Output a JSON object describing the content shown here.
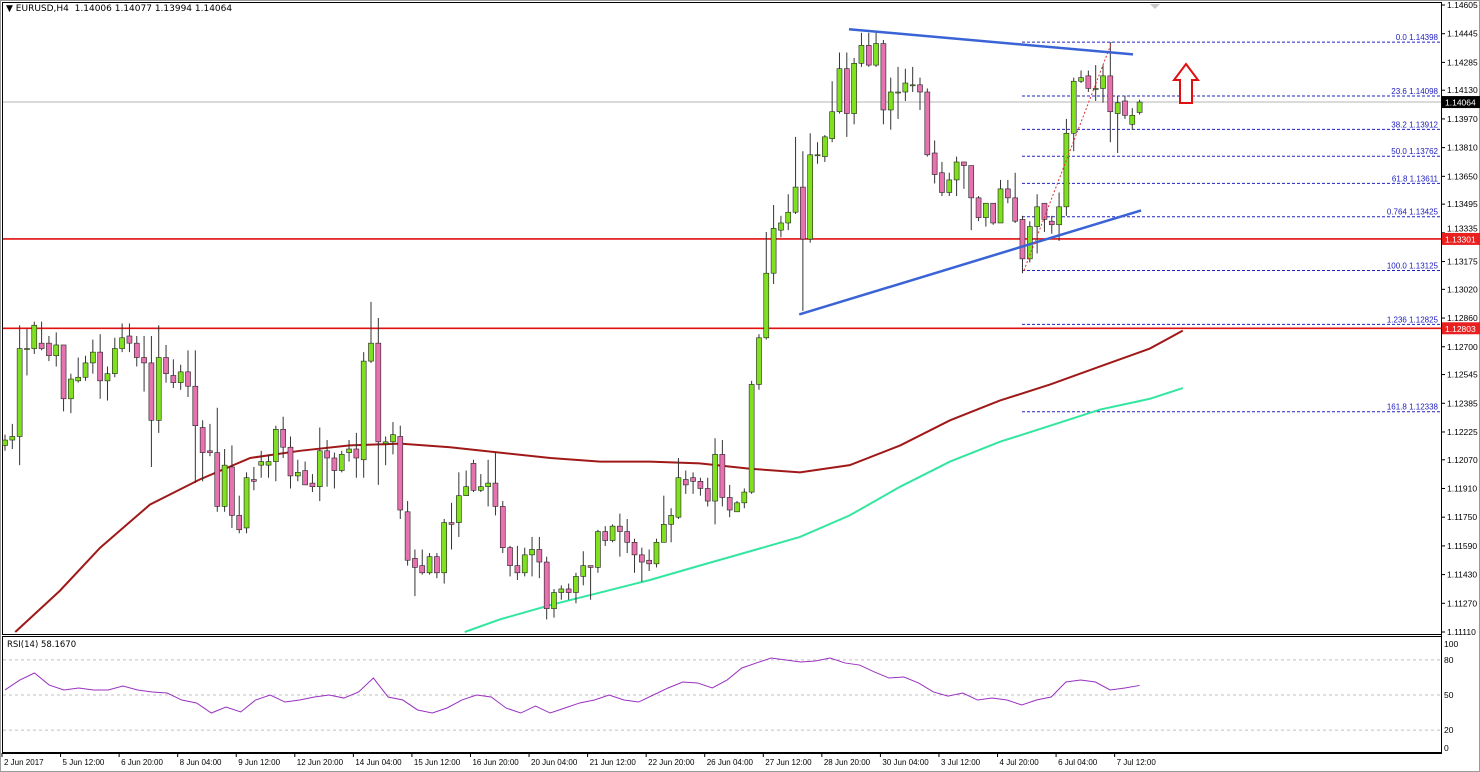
{
  "header": {
    "dropdown_icon": "triangle-down-icon",
    "symbol": "EURUSD,H4",
    "ohlc": "1.14006 1.14077 1.13994 1.14064"
  },
  "indicator": {
    "label": "RSI(14) 58.1670"
  },
  "colors": {
    "bull": "#80e020",
    "bear": "#e672b0",
    "ma_slow": "#a01818",
    "ma_fast": "#33e6a0",
    "trendline": "#3a63d6",
    "sr_line": "#e01010",
    "fib": "#2020c0",
    "rsi": "#9a30c0",
    "arrow": "#e01010"
  },
  "chart_data": {
    "type": "candlestick",
    "symbol": "EURUSD",
    "timeframe": "H4",
    "ylim": [
      1.1111,
      1.14605
    ],
    "price_ticks": [
      "1.14605",
      "1.14445",
      "1.14285",
      "1.14130",
      "1.13970",
      "1.13810",
      "1.13650",
      "1.13495",
      "1.13335",
      "1.13175",
      "1.13020",
      "1.12860",
      "1.12700",
      "1.12545",
      "1.12385",
      "1.12225",
      "1.12070",
      "1.11910",
      "1.11750",
      "1.11590",
      "1.11430",
      "1.11270",
      "1.11110"
    ],
    "time_ticks": [
      "2 Jun 2017",
      "5 Jun 12:00",
      "6 Jun 20:00",
      "8 Jun 04:00",
      "9 Jun 12:00",
      "12 Jun 20:00",
      "14 Jun 04:00",
      "15 Jun 12:00",
      "16 Jun 20:00",
      "20 Jun 04:00",
      "21 Jun 12:00",
      "22 Jun 20:00",
      "26 Jun 04:00",
      "27 Jun 12:00",
      "28 Jun 20:00",
      "30 Jun 04:00",
      "3 Jul 12:00",
      "4 Jul 20:00",
      "6 Jul 04:00",
      "7 Jul 12:00"
    ],
    "ohlc": [
      [
        1.1215,
        1.1221,
        1.1212,
        1.1218
      ],
      [
        1.1218,
        1.1227,
        1.1213,
        1.122
      ],
      [
        1.122,
        1.1282,
        1.1204,
        1.1269
      ],
      [
        1.1269,
        1.128,
        1.1254,
        1.1269
      ],
      [
        1.1269,
        1.1284,
        1.1266,
        1.1282
      ],
      [
        1.1272,
        1.1284,
        1.1268,
        1.1269
      ],
      [
        1.1272,
        1.1276,
        1.1262,
        1.1265
      ],
      [
        1.1265,
        1.1278,
        1.1259,
        1.1271
      ],
      [
        1.1271,
        1.1271,
        1.1234,
        1.1241
      ],
      [
        1.1241,
        1.1255,
        1.1233,
        1.1252
      ],
      [
        1.1251,
        1.1264,
        1.125,
        1.1253
      ],
      [
        1.1253,
        1.1265,
        1.1251,
        1.1261
      ],
      [
        1.1261,
        1.1274,
        1.1255,
        1.1267
      ],
      [
        1.1267,
        1.1277,
        1.1241,
        1.1251
      ],
      [
        1.1251,
        1.1259,
        1.124,
        1.1255
      ],
      [
        1.1255,
        1.1275,
        1.1253,
        1.1269
      ],
      [
        1.1269,
        1.1283,
        1.1267,
        1.1275
      ],
      [
        1.1276,
        1.1283,
        1.1267,
        1.1272
      ],
      [
        1.1272,
        1.1276,
        1.1259,
        1.1264
      ],
      [
        1.1264,
        1.1276,
        1.1245,
        1.1261
      ],
      [
        1.1261,
        1.1276,
        1.1203,
        1.1229
      ],
      [
        1.1229,
        1.1282,
        1.1222,
        1.1264
      ],
      [
        1.1264,
        1.1271,
        1.125,
        1.1255
      ],
      [
        1.1254,
        1.1263,
        1.1247,
        1.125
      ],
      [
        1.125,
        1.126,
        1.1246,
        1.1256
      ],
      [
        1.1256,
        1.1268,
        1.1242,
        1.1248
      ],
      [
        1.1248,
        1.1268,
        1.1194,
        1.1226
      ],
      [
        1.1225,
        1.1229,
        1.1195,
        1.1211
      ],
      [
        1.1212,
        1.1227,
        1.1209,
        1.1211
      ],
      [
        1.1211,
        1.1236,
        1.1178,
        1.1181
      ],
      [
        1.1181,
        1.1213,
        1.1178,
        1.1204
      ],
      [
        1.1203,
        1.1215,
        1.1169,
        1.1176
      ],
      [
        1.1176,
        1.1187,
        1.1166,
        1.1168
      ],
      [
        1.1169,
        1.12,
        1.1166,
        1.1197
      ],
      [
        1.1196,
        1.1203,
        1.119,
        1.1195
      ],
      [
        1.1204,
        1.1212,
        1.1197,
        1.1206
      ],
      [
        1.1204,
        1.121,
        1.1197,
        1.1206
      ],
      [
        1.1206,
        1.1226,
        1.1195,
        1.1224
      ],
      [
        1.1224,
        1.1231,
        1.1208,
        1.1214
      ],
      [
        1.1214,
        1.122,
        1.1191,
        1.1198
      ],
      [
        1.1198,
        1.1207,
        1.1195,
        1.12
      ],
      [
        1.1201,
        1.1206,
        1.1193,
        1.1193
      ],
      [
        1.1194,
        1.1199,
        1.1189,
        1.1192
      ],
      [
        1.1192,
        1.1225,
        1.1184,
        1.1212
      ],
      [
        1.1212,
        1.1218,
        1.1192,
        1.1208
      ],
      [
        1.1208,
        1.1211,
        1.1191,
        1.1201
      ],
      [
        1.1201,
        1.1212,
        1.12,
        1.121
      ],
      [
        1.1211,
        1.1218,
        1.1206,
        1.1213
      ],
      [
        1.1213,
        1.1222,
        1.1197,
        1.1208
      ],
      [
        1.1207,
        1.1267,
        1.1197,
        1.1262
      ],
      [
        1.1262,
        1.1295,
        1.1261,
        1.1272
      ],
      [
        1.1272,
        1.1286,
        1.1193,
        1.1217
      ],
      [
        1.1216,
        1.122,
        1.1204,
        1.1217
      ],
      [
        1.1217,
        1.1228,
        1.121,
        1.1221
      ],
      [
        1.122,
        1.1226,
        1.1174,
        1.1179
      ],
      [
        1.1178,
        1.1184,
        1.1148,
        1.1151
      ],
      [
        1.1152,
        1.1157,
        1.1131,
        1.1147
      ],
      [
        1.1148,
        1.1157,
        1.1143,
        1.1144
      ],
      [
        1.1144,
        1.1155,
        1.1143,
        1.1153
      ],
      [
        1.1153,
        1.1155,
        1.1141,
        1.1144
      ],
      [
        1.1144,
        1.1174,
        1.1138,
        1.1172
      ],
      [
        1.1172,
        1.1183,
        1.1157,
        1.1171
      ],
      [
        1.1172,
        1.12,
        1.1164,
        1.1187
      ],
      [
        1.1187,
        1.1201,
        1.1187,
        1.1192
      ],
      [
        1.1205,
        1.1207,
        1.1189,
        1.119
      ],
      [
        1.119,
        1.1199,
        1.1189,
        1.1192
      ],
      [
        1.1192,
        1.1207,
        1.1181,
        1.1194
      ],
      [
        1.1194,
        1.1211,
        1.1176,
        1.1181
      ],
      [
        1.1181,
        1.1184,
        1.1155,
        1.1158
      ],
      [
        1.1158,
        1.1159,
        1.1142,
        1.1148
      ],
      [
        1.1148,
        1.1159,
        1.114,
        1.1144
      ],
      [
        1.1144,
        1.1158,
        1.1142,
        1.1154
      ],
      [
        1.1154,
        1.1164,
        1.1142,
        1.1157
      ],
      [
        1.1157,
        1.1164,
        1.1141,
        1.115
      ],
      [
        1.115,
        1.1153,
        1.1118,
        1.1124
      ],
      [
        1.1124,
        1.1135,
        1.1119,
        1.1133
      ],
      [
        1.1133,
        1.1137,
        1.1129,
        1.1135
      ],
      [
        1.1135,
        1.1138,
        1.1129,
        1.1133
      ],
      [
        1.1133,
        1.1144,
        1.1127,
        1.1142
      ],
      [
        1.1142,
        1.1156,
        1.1137,
        1.1148
      ],
      [
        1.1148,
        1.1148,
        1.1129,
        1.1147
      ],
      [
        1.1147,
        1.1168,
        1.1144,
        1.1167
      ],
      [
        1.1167,
        1.117,
        1.1159,
        1.1162
      ],
      [
        1.1162,
        1.1171,
        1.1161,
        1.117
      ],
      [
        1.117,
        1.1177,
        1.1153,
        1.1167
      ],
      [
        1.1167,
        1.1174,
        1.1155,
        1.1161
      ],
      [
        1.1161,
        1.1163,
        1.1144,
        1.1154
      ],
      [
        1.1154,
        1.1158,
        1.1139,
        1.115
      ],
      [
        1.1151,
        1.1157,
        1.1145,
        1.1149
      ],
      [
        1.1149,
        1.1163,
        1.1147,
        1.1161
      ],
      [
        1.1161,
        1.1187,
        1.1161,
        1.1171
      ],
      [
        1.1171,
        1.118,
        1.1161,
        1.1176
      ],
      [
        1.1175,
        1.1208,
        1.1174,
        1.1197
      ],
      [
        1.1196,
        1.1201,
        1.1188,
        1.1193
      ],
      [
        1.1197,
        1.12,
        1.1188,
        1.1195
      ],
      [
        1.1195,
        1.1197,
        1.1187,
        1.1191
      ],
      [
        1.1191,
        1.1197,
        1.1181,
        1.1184
      ],
      [
        1.1184,
        1.1219,
        1.1171,
        1.121
      ],
      [
        1.121,
        1.1218,
        1.1181,
        1.1186
      ],
      [
        1.1186,
        1.1193,
        1.1175,
        1.1179
      ],
      [
        1.1178,
        1.1184,
        1.1178,
        1.1183
      ],
      [
        1.1183,
        1.1191,
        1.118,
        1.1189
      ],
      [
        1.1189,
        1.1251,
        1.1188,
        1.1249
      ],
      [
        1.1249,
        1.1277,
        1.1246,
        1.1275
      ],
      [
        1.1275,
        1.1334,
        1.1274,
        1.1311
      ],
      [
        1.1311,
        1.1349,
        1.1305,
        1.1336
      ],
      [
        1.1335,
        1.1343,
        1.1331,
        1.1339
      ],
      [
        1.1339,
        1.1355,
        1.1335,
        1.1345
      ],
      [
        1.1345,
        1.1387,
        1.1344,
        1.1359
      ],
      [
        1.1359,
        1.1379,
        1.129,
        1.133
      ],
      [
        1.133,
        1.1389,
        1.1328,
        1.1377
      ],
      [
        1.1377,
        1.1384,
        1.1372,
        1.1377
      ],
      [
        1.1376,
        1.1388,
        1.1373,
        1.1387
      ],
      [
        1.1386,
        1.1418,
        1.1384,
        1.1401
      ],
      [
        1.1401,
        1.1434,
        1.14,
        1.1425
      ],
      [
        1.1425,
        1.1434,
        1.1387,
        1.14
      ],
      [
        1.14,
        1.1431,
        1.1394,
        1.1428
      ],
      [
        1.1428,
        1.1445,
        1.1426,
        1.1438
      ],
      [
        1.1438,
        1.1445,
        1.1426,
        1.1427
      ],
      [
        1.1427,
        1.1445,
        1.1426,
        1.1439
      ],
      [
        1.1439,
        1.1441,
        1.1394,
        1.1402
      ],
      [
        1.1402,
        1.142,
        1.1391,
        1.1412
      ],
      [
        1.1412,
        1.1426,
        1.1397,
        1.1412
      ],
      [
        1.1412,
        1.1425,
        1.1407,
        1.1417
      ],
      [
        1.1416,
        1.1426,
        1.1412,
        1.1416
      ],
      [
        1.1416,
        1.142,
        1.1402,
        1.1412
      ],
      [
        1.1412,
        1.1414,
        1.1376,
        1.1377
      ],
      [
        1.1378,
        1.1385,
        1.1361,
        1.1366
      ],
      [
        1.1367,
        1.1373,
        1.1354,
        1.1356
      ],
      [
        1.1356,
        1.1367,
        1.1354,
        1.1363
      ],
      [
        1.1363,
        1.1376,
        1.1354,
        1.1373
      ],
      [
        1.1373,
        1.1373,
        1.1358,
        1.1371
      ],
      [
        1.1371,
        1.1371,
        1.1335,
        1.1353
      ],
      [
        1.1353,
        1.1354,
        1.134,
        1.1342
      ],
      [
        1.1342,
        1.135,
        1.1337,
        1.135
      ],
      [
        1.135,
        1.135,
        1.1338,
        1.1339
      ],
      [
        1.1339,
        1.1363,
        1.1339,
        1.1358
      ],
      [
        1.1358,
        1.1363,
        1.135,
        1.1353
      ],
      [
        1.1353,
        1.1367,
        1.1339,
        1.134
      ],
      [
        1.1341,
        1.1343,
        1.1311,
        1.1319
      ],
      [
        1.1319,
        1.134,
        1.1317,
        1.1337
      ],
      [
        1.1337,
        1.1355,
        1.1322,
        1.1348
      ],
      [
        1.135,
        1.135,
        1.1334,
        1.1341
      ],
      [
        1.134,
        1.1343,
        1.1333,
        1.1338
      ],
      [
        1.1338,
        1.1356,
        1.1329,
        1.1348
      ],
      [
        1.1348,
        1.1397,
        1.1343,
        1.1389
      ],
      [
        1.1389,
        1.142,
        1.1379,
        1.1418
      ],
      [
        1.1418,
        1.1424,
        1.1417,
        1.142
      ],
      [
        1.1421,
        1.1424,
        1.1412,
        1.1414
      ],
      [
        1.1414,
        1.1427,
        1.1407,
        1.1414
      ],
      [
        1.1414,
        1.1427,
        1.1406,
        1.1421
      ],
      [
        1.1421,
        1.14398,
        1.1384,
        1.1401
      ],
      [
        1.14,
        1.141,
        1.1378,
        1.1406
      ],
      [
        1.1407,
        1.141,
        1.1397,
        1.1399
      ],
      [
        1.1394,
        1.1403,
        1.1391,
        1.1399
      ],
      [
        1.14006,
        1.14077,
        1.13994,
        1.14064
      ]
    ],
    "ma_slow": [
      [
        1.4,
        1.1111
      ],
      [
        7.5,
        1.1134
      ],
      [
        13,
        1.1158
      ],
      [
        19.8,
        1.1182
      ],
      [
        26.6,
        1.1196
      ],
      [
        33.5,
        1.1208
      ],
      [
        40.3,
        1.1212
      ],
      [
        47.1,
        1.1215
      ],
      [
        54,
        1.1216
      ],
      [
        60.8,
        1.1214
      ],
      [
        67.6,
        1.1211
      ],
      [
        74.5,
        1.1208
      ],
      [
        81.3,
        1.1206
      ],
      [
        88.1,
        1.1206
      ],
      [
        94.9,
        1.1205
      ],
      [
        101.8,
        1.1202
      ],
      [
        108.6,
        1.12
      ],
      [
        115.4,
        1.1204
      ],
      [
        122.3,
        1.1215
      ],
      [
        129.1,
        1.1229
      ],
      [
        135.9,
        1.124
      ],
      [
        142.8,
        1.1249
      ],
      [
        149.6,
        1.1259
      ],
      [
        156.4,
        1.1269
      ],
      [
        160.9,
        1.1279
      ]
    ],
    "ma_fast": [
      [
        62.8,
        1.1111
      ],
      [
        67.6,
        1.1118
      ],
      [
        74.5,
        1.1126
      ],
      [
        81.3,
        1.1133
      ],
      [
        88.1,
        1.114
      ],
      [
        94.9,
        1.1148
      ],
      [
        101.8,
        1.1156
      ],
      [
        108.6,
        1.1164
      ],
      [
        115.4,
        1.1176
      ],
      [
        122.3,
        1.1192
      ],
      [
        129.1,
        1.1206
      ],
      [
        135.9,
        1.1217
      ],
      [
        142.8,
        1.1226
      ],
      [
        149.6,
        1.1235
      ],
      [
        156.4,
        1.1241
      ],
      [
        160.9,
        1.1247
      ]
    ],
    "trendlines": [
      [
        [
          115.3,
          1.1447
        ],
        [
          154.1,
          1.1433
        ]
      ],
      [
        [
          108.5,
          1.1288
        ],
        [
          155.2,
          1.1346
        ]
      ]
    ],
    "horizontal_levels": [
      {
        "price": 1.13301,
        "label": "1.13301"
      },
      {
        "price": 1.12803,
        "label": "1.12803"
      }
    ],
    "current_price": {
      "price": 1.14064,
      "label": "1.14064"
    },
    "fib_anchor": [
      [
        139.2,
        1.13125
      ],
      [
        151.2,
        1.14398
      ]
    ],
    "fib_levels": [
      {
        "label": "0.0 1.14398",
        "price": 1.14398
      },
      {
        "label": "23.6 1.14098",
        "price": 1.14098
      },
      {
        "label": "38.2 1.13912",
        "price": 1.13912
      },
      {
        "label": "50.0 1.13762",
        "price": 1.13762
      },
      {
        "label": "61.8 1.13611",
        "price": 1.13611
      },
      {
        "label": "0.764 1.13425",
        "price": 1.13425
      },
      {
        "label": "100.0 1.13125",
        "price": 1.13125
      },
      {
        "label": "1.236 1.12825",
        "price": 1.12825
      },
      {
        "label": "161.8 1.12338",
        "price": 1.12338
      }
    ],
    "arrow": {
      "direction": "up",
      "icon": "up-arrow-outline-icon"
    },
    "rsi": {
      "period": 14,
      "ylim": [
        0,
        100
      ],
      "ticks": [
        "100",
        "80",
        "50",
        "20",
        "0"
      ],
      "levels": [
        80,
        50,
        20
      ],
      "values": [
        54.3,
        62.8,
        68.8,
        58.5,
        54.3,
        56,
        54.3,
        54.3,
        57.7,
        54.3,
        52.6,
        51.7,
        45.7,
        43.2,
        34.6,
        39.7,
        35.5,
        45.7,
        50,
        44,
        45.7,
        48.3,
        50,
        47.4,
        52.6,
        64.5,
        48.3,
        45.7,
        37.2,
        34.6,
        38.9,
        45.7,
        50,
        48.3,
        38.9,
        34.6,
        40.6,
        34.6,
        38.9,
        43.2,
        45.7,
        50,
        45.7,
        44,
        50,
        56,
        61.1,
        60.3,
        56,
        62.8,
        73.1,
        77.4,
        81.6,
        79.9,
        78.2,
        79.1,
        81.6,
        77.4,
        75.6,
        69.7,
        64.5,
        65.4,
        60.3,
        52.6,
        49.1,
        51.7,
        45.7,
        47.4,
        45.7,
        41.5,
        45.7,
        48.3,
        61.1,
        62.8,
        61.1,
        54.3,
        56,
        58.17
      ]
    }
  }
}
